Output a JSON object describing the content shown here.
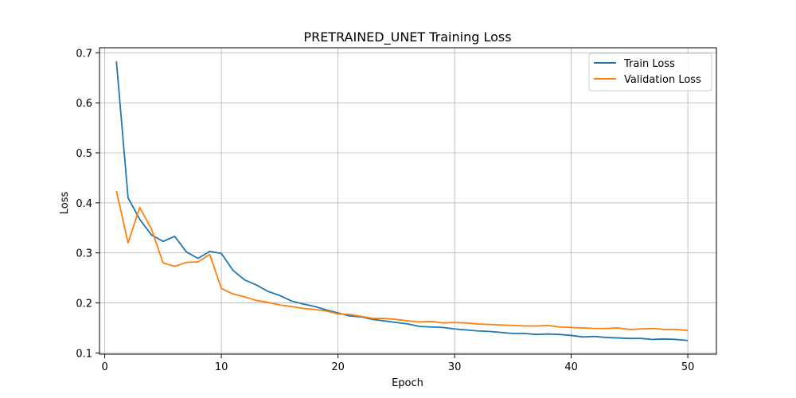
{
  "chart_data": {
    "type": "line",
    "title": "PRETRAINED_UNET Training Loss",
    "xlabel": "Epoch",
    "ylabel": "Loss",
    "xlim": [
      -0.45,
      52.45
    ],
    "ylim": [
      0.0975,
      0.71
    ],
    "xticks": [
      0,
      10,
      20,
      30,
      40,
      50
    ],
    "yticks": [
      0.1,
      0.2,
      0.3,
      0.4,
      0.5,
      0.6,
      0.7
    ],
    "ytick_labels": [
      "0.1",
      "0.2",
      "0.3",
      "0.4",
      "0.5",
      "0.6",
      "0.7"
    ],
    "grid": true,
    "legend_position": "top-right",
    "x": [
      1,
      2,
      3,
      4,
      5,
      6,
      7,
      8,
      9,
      10,
      11,
      12,
      13,
      14,
      15,
      16,
      17,
      18,
      19,
      20,
      21,
      22,
      23,
      24,
      25,
      26,
      27,
      28,
      29,
      30,
      31,
      32,
      33,
      34,
      35,
      36,
      37,
      38,
      39,
      40,
      41,
      42,
      43,
      44,
      45,
      46,
      47,
      48,
      49,
      50
    ],
    "series": [
      {
        "name": "Train Loss",
        "color": "#1f77b4",
        "values": [
          0.683,
          0.41,
          0.367,
          0.336,
          0.323,
          0.333,
          0.302,
          0.289,
          0.303,
          0.299,
          0.265,
          0.246,
          0.236,
          0.223,
          0.215,
          0.204,
          0.198,
          0.193,
          0.186,
          0.18,
          0.174,
          0.172,
          0.167,
          0.164,
          0.161,
          0.158,
          0.153,
          0.152,
          0.151,
          0.148,
          0.146,
          0.144,
          0.143,
          0.141,
          0.139,
          0.139,
          0.137,
          0.138,
          0.137,
          0.135,
          0.132,
          0.133,
          0.131,
          0.13,
          0.129,
          0.129,
          0.127,
          0.128,
          0.127,
          0.125
        ]
      },
      {
        "name": "Validation Loss",
        "color": "#ff7f0e",
        "values": [
          0.424,
          0.32,
          0.391,
          0.348,
          0.28,
          0.273,
          0.281,
          0.282,
          0.297,
          0.229,
          0.218,
          0.212,
          0.205,
          0.201,
          0.196,
          0.193,
          0.189,
          0.187,
          0.184,
          0.178,
          0.177,
          0.173,
          0.169,
          0.169,
          0.167,
          0.164,
          0.162,
          0.163,
          0.16,
          0.161,
          0.16,
          0.158,
          0.157,
          0.156,
          0.155,
          0.154,
          0.154,
          0.155,
          0.152,
          0.151,
          0.15,
          0.149,
          0.149,
          0.15,
          0.147,
          0.148,
          0.149,
          0.147,
          0.147,
          0.145
        ]
      }
    ]
  }
}
